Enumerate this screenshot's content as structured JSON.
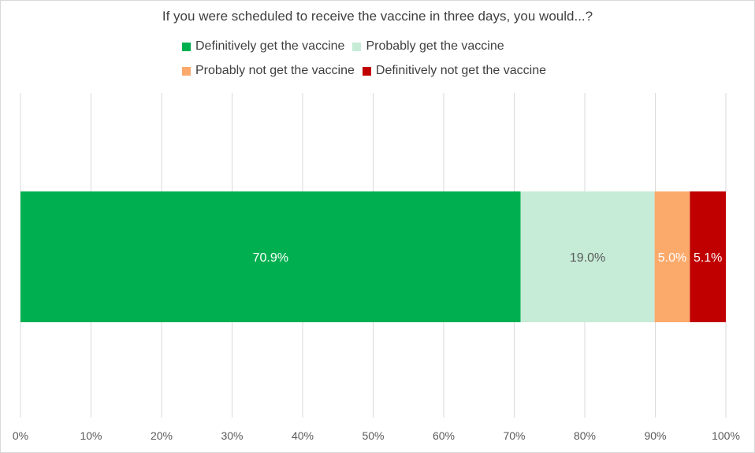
{
  "chart_data": {
    "type": "bar",
    "orientation": "horizontal",
    "stacked": "100%",
    "title": "If you were scheduled to receive the vaccine in three days, you would...?",
    "categories": [
      ""
    ],
    "series": [
      {
        "name": "Definitively get the vaccine",
        "values": [
          70.9
        ],
        "label": "70.9%",
        "color": "#00b050",
        "label_color": "#ffffff"
      },
      {
        "name": "Probably get the vaccine",
        "values": [
          19.0
        ],
        "label": "19.0%",
        "color": "#c6ecd7",
        "label_color": "#595959"
      },
      {
        "name": "Probably not get the vaccine",
        "values": [
          5.0
        ],
        "label": "5.0%",
        "color": "#fbaa6c",
        "label_color": "#ffffff"
      },
      {
        "name": "Definitively not get the vaccine",
        "values": [
          5.1
        ],
        "label": "5.1%",
        "color": "#c00000",
        "label_color": "#ffffff"
      }
    ],
    "xlim": [
      0,
      100
    ],
    "x_ticks": [
      "0%",
      "10%",
      "20%",
      "30%",
      "40%",
      "50%",
      "60%",
      "70%",
      "80%",
      "90%",
      "100%"
    ],
    "grid": true,
    "legend_position": "top"
  }
}
